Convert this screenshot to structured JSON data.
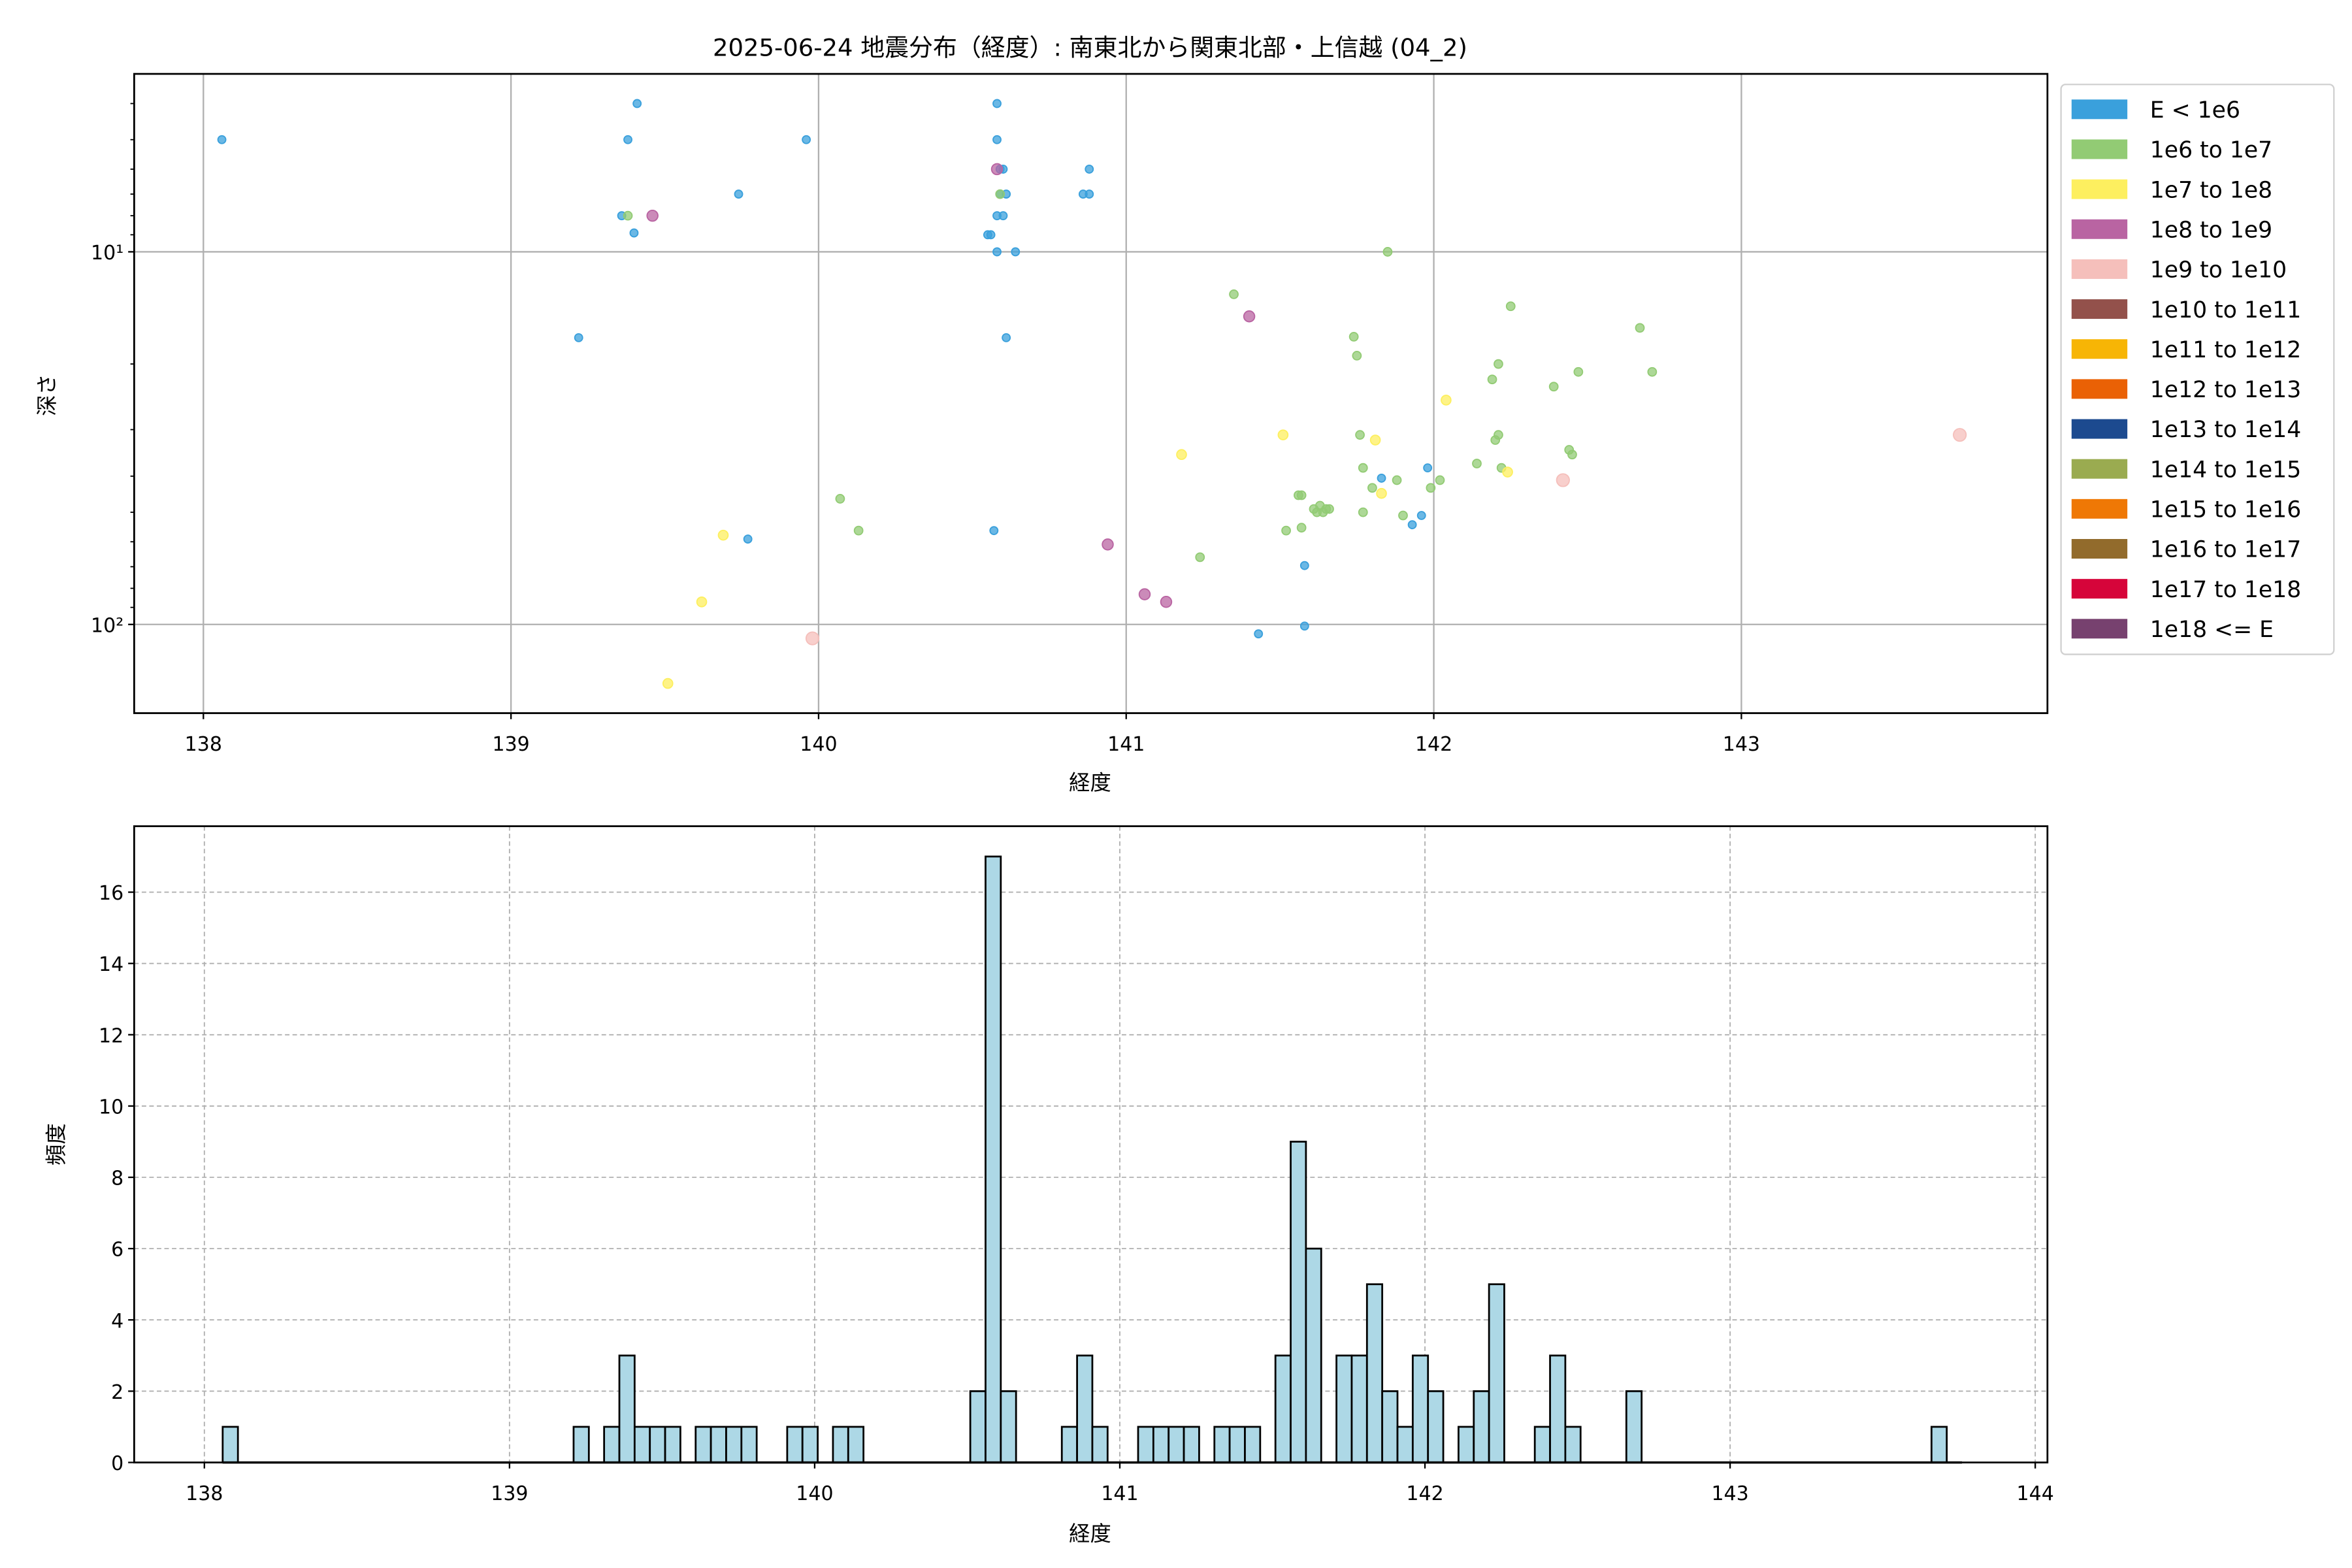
{
  "chart_data": [
    {
      "type": "scatter",
      "title": "2025-06-24 地震分布（経度）: 南東北から関東北部・上信越 (04_2)",
      "xlabel": "経度",
      "ylabel": "深さ",
      "xlim": [
        137.775,
        143.995
      ],
      "ylim": [
        173,
        3.33
      ],
      "yscale": "log",
      "yinverted": true,
      "grid": true,
      "xticks": [
        138,
        139,
        140,
        141,
        142,
        143
      ],
      "xticklabels": [
        "138",
        "139",
        "140",
        "141",
        "142",
        "143"
      ],
      "yticks": [
        10,
        100
      ],
      "yticklabels": [
        "10¹",
        "10²"
      ],
      "legend_position": "outside-right",
      "legend": [
        {
          "label": "E < 1e6",
          "color": "#3aa0dc"
        },
        {
          "label": "1e6 to 1e7",
          "color": "#92cb74"
        },
        {
          "label": "1e7 to 1e8",
          "color": "#fdef5f"
        },
        {
          "label": "1e8 to 1e9",
          "color": "#b964a2"
        },
        {
          "label": "1e9 to 1e10",
          "color": "#f5bfbb"
        },
        {
          "label": "1e10 to 1e11",
          "color": "#93514b"
        },
        {
          "label": "1e11 to 1e12",
          "color": "#f7b505"
        },
        {
          "label": "1e12 to 1e13",
          "color": "#ea6105"
        },
        {
          "label": "1e13 to 1e14",
          "color": "#1c4a8f"
        },
        {
          "label": "1e14 to 1e15",
          "color": "#9aab50"
        },
        {
          "label": "1e15 to 1e16",
          "color": "#ef7805"
        },
        {
          "label": "1e16 to 1e17",
          "color": "#926b2c"
        },
        {
          "label": "1e17 to 1e18",
          "color": "#d6053a"
        },
        {
          "label": "1e18 <= E",
          "color": "#77416f"
        }
      ],
      "series": [
        {
          "class": 0,
          "points": [
            [
              138.06,
              5
            ],
            [
              139.41,
              4
            ],
            [
              139.38,
              5
            ],
            [
              139.96,
              5
            ],
            [
              139.74,
              7
            ],
            [
              139.36,
              8
            ],
            [
              139.4,
              8.9
            ],
            [
              139.22,
              17
            ],
            [
              139.77,
              59
            ],
            [
              140.58,
              4
            ],
            [
              140.58,
              5
            ],
            [
              140.59,
              6
            ],
            [
              140.6,
              6
            ],
            [
              140.59,
              7
            ],
            [
              140.61,
              7
            ],
            [
              140.58,
              8
            ],
            [
              140.6,
              8
            ],
            [
              140.55,
              9
            ],
            [
              140.56,
              9
            ],
            [
              140.58,
              10
            ],
            [
              140.64,
              10
            ],
            [
              140.86,
              7
            ],
            [
              140.88,
              7
            ],
            [
              140.88,
              6
            ],
            [
              140.61,
              17
            ],
            [
              140.57,
              56
            ],
            [
              141.98,
              38
            ],
            [
              141.83,
              40.5
            ],
            [
              141.96,
              51
            ],
            [
              141.93,
              54
            ],
            [
              141.58,
              69.5
            ],
            [
              141.58,
              101
            ],
            [
              141.43,
              106
            ]
          ]
        },
        {
          "class": 1,
          "points": [
            [
              139.38,
              8
            ],
            [
              140.59,
              7
            ],
            [
              141.85,
              10
            ],
            [
              141.35,
              13
            ],
            [
              142.25,
              14
            ],
            [
              141.74,
              16.9
            ],
            [
              141.75,
              19
            ],
            [
              142.21,
              20
            ],
            [
              142.47,
              21
            ],
            [
              142.19,
              22
            ],
            [
              142.67,
              16
            ],
            [
              142.71,
              21
            ],
            [
              142.39,
              23
            ],
            [
              142.2,
              32
            ],
            [
              142.21,
              31
            ],
            [
              142.44,
              34
            ],
            [
              142.45,
              35
            ],
            [
              141.76,
              31
            ],
            [
              141.77,
              38
            ],
            [
              141.8,
              43
            ],
            [
              141.88,
              41
            ],
            [
              142.02,
              41
            ],
            [
              141.99,
              43
            ],
            [
              142.14,
              37
            ],
            [
              142.22,
              38
            ],
            [
              141.56,
              45
            ],
            [
              141.57,
              45
            ],
            [
              141.57,
              55
            ],
            [
              141.52,
              56
            ],
            [
              141.61,
              49
            ],
            [
              141.63,
              48
            ],
            [
              141.65,
              49
            ],
            [
              141.62,
              50
            ],
            [
              141.64,
              50
            ],
            [
              141.66,
              49
            ],
            [
              141.77,
              50
            ],
            [
              141.9,
              51
            ],
            [
              140.07,
              46
            ],
            [
              140.13,
              56
            ],
            [
              141.24,
              66
            ]
          ]
        },
        {
          "class": 2,
          "points": [
            [
              141.18,
              35
            ],
            [
              141.51,
              31
            ],
            [
              141.81,
              32
            ],
            [
              142.04,
              25
            ],
            [
              141.83,
              44.5
            ],
            [
              142.24,
              39
            ],
            [
              139.69,
              57.6
            ],
            [
              139.62,
              87
            ],
            [
              139.51,
              144
            ]
          ]
        },
        {
          "class": 3,
          "points": [
            [
              139.46,
              8
            ],
            [
              140.58,
              6
            ],
            [
              141.4,
              14.9
            ],
            [
              140.94,
              61
            ],
            [
              141.06,
              83
            ],
            [
              141.13,
              87
            ]
          ]
        },
        {
          "class": 4,
          "points": [
            [
              139.98,
              109
            ],
            [
              142.42,
              41
            ],
            [
              143.71,
              31
            ]
          ]
        }
      ]
    },
    {
      "type": "bar",
      "subtype": "histogram",
      "xlabel": "経度",
      "ylabel": "頻度",
      "xlim": [
        137.77,
        144.04
      ],
      "ylim": [
        0,
        17.85
      ],
      "grid": true,
      "bar_color": "#add8e6",
      "xticks": [
        138,
        139,
        140,
        141,
        142,
        143,
        144
      ],
      "xticklabels": [
        "138",
        "139",
        "140",
        "141",
        "142",
        "143",
        "144"
      ],
      "yticks": [
        0,
        2,
        4,
        6,
        8,
        10,
        12,
        14,
        16
      ],
      "yticklabels": [
        "0",
        "2",
        "4",
        "6",
        "8",
        "10",
        "12",
        "14",
        "16"
      ],
      "bin_width": 0.05,
      "bins": [
        [
          138.06,
          1
        ],
        [
          139.21,
          1
        ],
        [
          139.31,
          1
        ],
        [
          139.36,
          3
        ],
        [
          139.41,
          1
        ],
        [
          139.46,
          1
        ],
        [
          139.51,
          1
        ],
        [
          139.61,
          1
        ],
        [
          139.66,
          1
        ],
        [
          139.71,
          1
        ],
        [
          139.76,
          1
        ],
        [
          139.91,
          1
        ],
        [
          139.96,
          1
        ],
        [
          140.06,
          1
        ],
        [
          140.11,
          1
        ],
        [
          140.51,
          2
        ],
        [
          140.56,
          17
        ],
        [
          140.61,
          2
        ],
        [
          140.81,
          1
        ],
        [
          140.86,
          3
        ],
        [
          140.91,
          1
        ],
        [
          141.06,
          1
        ],
        [
          141.11,
          1
        ],
        [
          141.16,
          1
        ],
        [
          141.21,
          1
        ],
        [
          141.31,
          1
        ],
        [
          141.36,
          1
        ],
        [
          141.41,
          1
        ],
        [
          141.51,
          3
        ],
        [
          141.56,
          9
        ],
        [
          141.61,
          6
        ],
        [
          141.71,
          3
        ],
        [
          141.76,
          3
        ],
        [
          141.81,
          5
        ],
        [
          141.86,
          2
        ],
        [
          141.91,
          1
        ],
        [
          141.96,
          3
        ],
        [
          142.01,
          2
        ],
        [
          142.11,
          1
        ],
        [
          142.16,
          2
        ],
        [
          142.21,
          5
        ],
        [
          142.36,
          1
        ],
        [
          142.41,
          3
        ],
        [
          142.46,
          1
        ],
        [
          142.66,
          2
        ],
        [
          143.66,
          1
        ]
      ]
    }
  ]
}
